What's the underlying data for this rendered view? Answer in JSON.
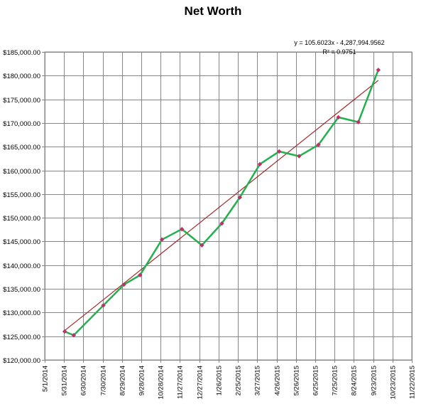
{
  "chart_data": {
    "type": "line",
    "title": "Net Worth",
    "xlabel": "",
    "ylabel": "",
    "x_ticks": [
      "5/1/2014",
      "5/31/2014",
      "6/30/2014",
      "7/30/2014",
      "8/29/2014",
      "9/28/2014",
      "10/28/2014",
      "11/27/2014",
      "12/27/2014",
      "1/26/2015",
      "2/25/2015",
      "3/27/2015",
      "4/26/2015",
      "5/26/2015",
      "6/25/2015",
      "7/25/2015",
      "8/24/2015",
      "9/23/2015",
      "10/23/2015",
      "11/22/2015"
    ],
    "y_ticks": [
      "$120,000.00",
      "$125,000.00",
      "$130,000.00",
      "$135,000.00",
      "$140,000.00",
      "$145,000.00",
      "$150,000.00",
      "$155,000.00",
      "$160,000.00",
      "$165,000.00",
      "$170,000.00",
      "$175,000.00",
      "$180,000.00",
      "$185,000.00"
    ],
    "ylim": [
      120000,
      185000
    ],
    "xlim": [
      "5/1/2014",
      "11/22/2015"
    ],
    "grid": true,
    "series": [
      {
        "x": [
          "6/1/2014",
          "6/15/2014",
          "7/31/2014",
          "9/1/2014",
          "9/26/2014",
          "10/30/2014",
          "11/30/2014",
          "12/31/2014",
          "1/31/2015",
          "2/28/2015",
          "3/31/2015",
          "4/30/2015",
          "5/31/2015",
          "6/30/2015",
          "7/31/2015",
          "8/31/2015",
          "10/1/2015"
        ],
        "values": [
          126000,
          125200,
          131500,
          135900,
          137900,
          145400,
          147600,
          144200,
          148800,
          154300,
          161300,
          164000,
          163000,
          165400,
          171200,
          170200,
          181200
        ],
        "color": "#22b14c",
        "marker_color": "#c0306a"
      }
    ],
    "trendline": {
      "equation": "y = 105.6023x - 4,287,994.9562",
      "r_squared": "R² = 0.9751",
      "color": "#a52a2a",
      "start": {
        "x": "6/1/2014",
        "y": 126200
      },
      "end": {
        "x": "10/1/2015",
        "y": 179000
      }
    }
  }
}
